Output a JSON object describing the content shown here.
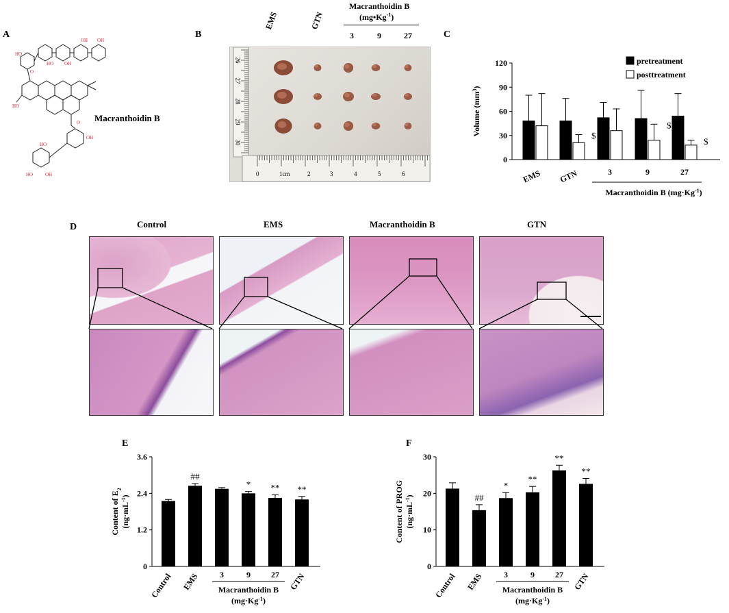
{
  "panels": {
    "A": {
      "letter": "A",
      "compound_label": "Macranthoidin B"
    },
    "B": {
      "letter": "B",
      "group_labels": [
        "EMS",
        "GTN"
      ],
      "group_title": "Macranthoidin B",
      "group_unit": "(mg•Kg",
      "dose_labels": [
        "3",
        "9",
        "27"
      ],
      "ruler_numbers": [
        "0",
        "1cm",
        "2",
        "3",
        "4",
        "5",
        "6"
      ],
      "ruler_side_numbers": [
        "26",
        "27",
        "28",
        "29",
        "30"
      ]
    },
    "C": {
      "letter": "C"
    },
    "D": {
      "letter": "D",
      "column_titles": [
        "Control",
        "EMS",
        "Macranthoidin B",
        "GTN"
      ]
    },
    "E": {
      "letter": "E"
    },
    "F": {
      "letter": "F"
    }
  },
  "chart_data": [
    {
      "id": "C",
      "type": "bar",
      "categories": [
        "EMS",
        "GTN",
        "3",
        "9",
        "27"
      ],
      "series": [
        {
          "name": "pretreatment",
          "values": [
            48,
            48,
            52,
            51,
            54
          ],
          "errors": [
            32,
            28,
            19,
            35,
            28
          ],
          "color": "#000000"
        },
        {
          "name": "posttreatment",
          "values": [
            42,
            21,
            36,
            24,
            18
          ],
          "errors": [
            40,
            10,
            27,
            20,
            6
          ],
          "color": "#ffffff"
        }
      ],
      "annotations": [
        {
          "index": 1,
          "text": "$"
        },
        {
          "index": 3,
          "text": "$"
        },
        {
          "index": 4,
          "text": "$"
        }
      ],
      "ylabel": "Volume (mm",
      "ylabel_sup": "3",
      "ylabel_close": ")",
      "ylim": [
        0,
        120
      ],
      "yticks": [
        "0",
        "30",
        "60",
        "90",
        "120"
      ],
      "group_label": "Macranthoidin B (mg·Kg",
      "legend_position": "top-right"
    },
    {
      "id": "E",
      "type": "bar",
      "categories": [
        "Control",
        "EMS",
        "3",
        "9",
        "27",
        "GTN"
      ],
      "values": [
        2.15,
        2.65,
        2.55,
        2.4,
        2.25,
        2.2
      ],
      "errors": [
        0.05,
        0.07,
        0.04,
        0.06,
        0.1,
        0.1
      ],
      "annotations": [
        "",
        "##",
        "",
        "*",
        "**",
        "**"
      ],
      "ylabel_line1": "Content of E",
      "ylabel_line1_sub": "2",
      "ylabel_line2": "(ng·mL",
      "ylim": [
        0,
        3.6
      ],
      "yticks": [
        "0",
        "1.2",
        "2.4",
        "3.6"
      ],
      "group_label": "Macranthoidin B",
      "group_unit": "(mg·Kg"
    },
    {
      "id": "F",
      "type": "bar",
      "categories": [
        "Control",
        "EMS",
        "3",
        "9",
        "27",
        "GTN"
      ],
      "values": [
        21.3,
        15.4,
        18.7,
        20.3,
        26.3,
        22.6
      ],
      "errors": [
        1.6,
        1.5,
        1.5,
        1.6,
        1.4,
        1.5
      ],
      "annotations": [
        "",
        "##",
        "*",
        "**",
        "**",
        "**"
      ],
      "ylabel_line1": "Content of PROG",
      "ylabel_line2": "(ng·mL",
      "ylim": [
        0,
        30
      ],
      "yticks": [
        "0",
        "10",
        "20",
        "30"
      ],
      "group_label": "Macranthoidin B",
      "group_unit": "(mg·Kg"
    }
  ],
  "minus_one": "-1",
  "colors": {
    "he_pink": "#e3a6c6",
    "he_purple": "#8f3f94",
    "tissue_light": "#f1dcea"
  }
}
